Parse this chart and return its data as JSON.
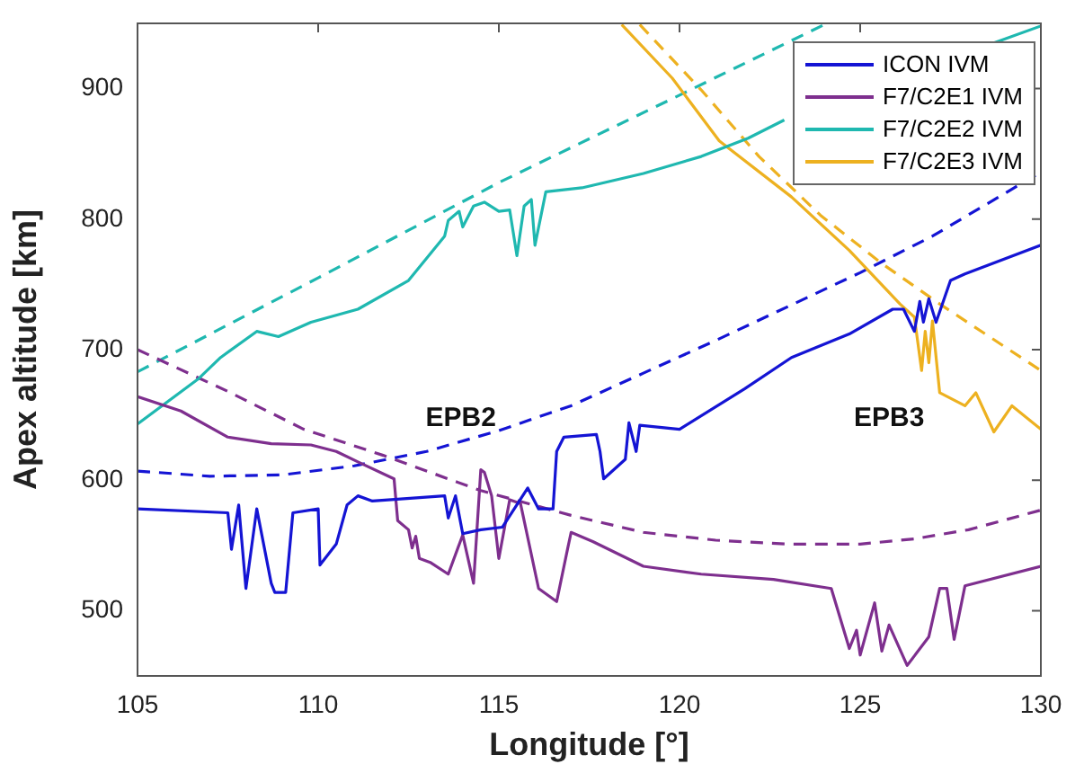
{
  "chart_data": {
    "type": "line",
    "xlabel": "Longitude [°]",
    "ylabel": "Apex altitude [km]",
    "xlim": [
      105,
      130
    ],
    "xticks": [
      105,
      110,
      115,
      120,
      125,
      130
    ],
    "ylim": [
      450,
      950
    ],
    "yticks": [
      500,
      600,
      700,
      800,
      900
    ],
    "grid": false,
    "legend": "top right",
    "marker": "none",
    "series": [
      {
        "name": "ICON IVM",
        "color": "#1414d4",
        "line_style": "solid",
        "x": [
          105,
          107.5,
          107.6,
          107.8,
          108,
          108.3,
          108.7,
          108.8,
          109.1,
          109.3,
          110,
          110.05,
          110.5,
          110.8,
          111.1,
          111.5,
          113.5,
          113.6,
          113.8,
          114,
          114.5,
          115.1,
          115.8,
          116.1,
          116.5,
          116.6,
          116.8,
          117.7,
          117.8,
          117.9,
          118.5,
          118.6,
          118.8,
          118.9,
          120,
          121.8,
          123.1,
          124.7,
          125.9,
          126.2,
          126.5,
          126.65,
          126.75,
          126.9,
          127.1,
          127.5,
          127.9,
          130
        ],
        "values": [
          578,
          575,
          547,
          581,
          517,
          578,
          521,
          514,
          514,
          575,
          578,
          535,
          551,
          581,
          588,
          584,
          588,
          571,
          588,
          559,
          562,
          564,
          594,
          578,
          578,
          622,
          633,
          635,
          622,
          601,
          616,
          644,
          622,
          642,
          639,
          670,
          694,
          712,
          731,
          731,
          714,
          737,
          721,
          739,
          721,
          753,
          758,
          780
        ]
      },
      {
        "name": "F7/C2E1 IVM",
        "color": "#7e2f8e",
        "line_style": "solid",
        "x": [
          105,
          106.2,
          107.5,
          108.7,
          109.8,
          110.5,
          111.1,
          112.1,
          112.2,
          112.5,
          112.6,
          112.7,
          112.8,
          113.1,
          113.6,
          114,
          114.3,
          114.5,
          114.6,
          114.8,
          115,
          115.3,
          115.6,
          116.1,
          116.6,
          116.9,
          117,
          117.6,
          119,
          120.6,
          122.6,
          124.2,
          124.7,
          124.9,
          125,
          125.4,
          125.6,
          125.8,
          126.3,
          126.9,
          127.2,
          127.4,
          127.6,
          127.9,
          130
        ],
        "values": [
          664,
          653,
          633,
          628,
          627,
          622,
          614,
          601,
          569,
          562,
          548,
          557,
          540,
          537,
          528,
          558,
          521,
          608,
          606,
          588,
          540,
          585,
          582,
          517,
          507,
          547,
          560,
          553,
          534,
          528,
          524,
          517,
          471,
          485,
          466,
          506,
          469,
          489,
          458,
          480,
          517,
          517,
          478,
          519,
          534
        ]
      },
      {
        "name": "F7/C2E2 IVM",
        "color": "#1fb8b0",
        "line_style": "solid",
        "x": [
          105,
          106.7,
          107.3,
          108.3,
          108.9,
          109.8,
          111.1,
          112.5,
          113.5,
          113.6,
          113.9,
          114,
          114.3,
          114.6,
          115,
          115.3,
          115.5,
          115.7,
          115.9,
          116,
          116.3,
          117.3,
          119,
          120.6,
          121.9,
          122.9,
          123.3,
          128.5,
          128.7,
          130
        ],
        "values": [
          643,
          678,
          694,
          714,
          710,
          721,
          731,
          753,
          787,
          799,
          806,
          794,
          810,
          813,
          806,
          807,
          772,
          810,
          815,
          780,
          821,
          824,
          835,
          848,
          862,
          876,
          null,
          null,
          935,
          948
        ]
      },
      {
        "name": "F7/C2E3 IVM",
        "color": "#edb120",
        "line_style": "solid",
        "x": [
          118.4,
          119.8,
          121.1,
          123.1,
          124.7,
          126.1,
          126.5,
          126.7,
          126.8,
          126.9,
          127,
          127.2,
          127.9,
          128.2,
          128.7,
          129.2,
          130
        ],
        "values": [
          949,
          908,
          860,
          817,
          776,
          735,
          725,
          684,
          714,
          690,
          722,
          667,
          657,
          667,
          637,
          657,
          639
        ]
      },
      {
        "color": "#1414d4",
        "line_style": "dashed",
        "x": [
          105,
          107,
          109,
          111,
          113,
          115,
          117,
          119,
          121,
          123,
          125,
          127,
          130
        ],
        "values": [
          607,
          603,
          604,
          611,
          622,
          638,
          657,
          682,
          707,
          733,
          759,
          787,
          836
        ]
      },
      {
        "color": "#7e2f8e",
        "line_style": "dashed",
        "x": [
          105,
          107.5,
          109.6,
          111.8,
          114.5,
          117,
          119,
          121,
          123,
          125,
          126.5,
          128,
          130
        ],
        "values": [
          700,
          668,
          639,
          619,
          592,
          573,
          560,
          554,
          551,
          551,
          555,
          562,
          577
        ]
      },
      {
        "color": "#1fb8b0",
        "line_style": "dashed",
        "x": [
          105,
          110,
          115,
          120,
          124
        ],
        "values": [
          683,
          755,
          828,
          895,
          949
        ]
      },
      {
        "color": "#edb120",
        "line_style": "dashed",
        "x": [
          118.9,
          120.6,
          122.2,
          123.9,
          125.6,
          127.2,
          130
        ],
        "values": [
          949,
          899,
          848,
          803,
          766,
          735,
          684
        ]
      }
    ],
    "annotations": [
      "EPB2",
      "EPB3"
    ]
  }
}
